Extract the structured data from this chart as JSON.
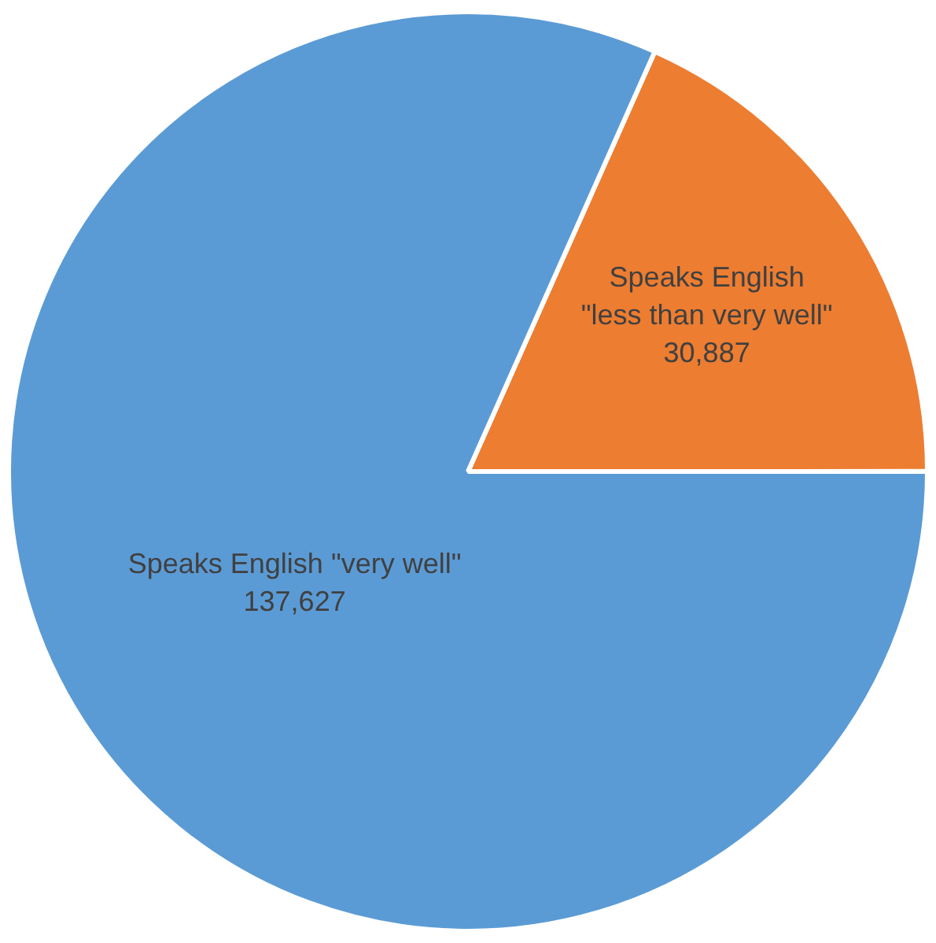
{
  "chart_data": {
    "type": "pie",
    "categories": [
      "Speaks English \"less than very well\"",
      "Speaks English \"very well\""
    ],
    "values": [
      30887,
      137627
    ],
    "colors": [
      "#ed7d31",
      "#5b9bd5"
    ],
    "value_labels": [
      "30,887",
      "137,627"
    ],
    "legend": false
  }
}
